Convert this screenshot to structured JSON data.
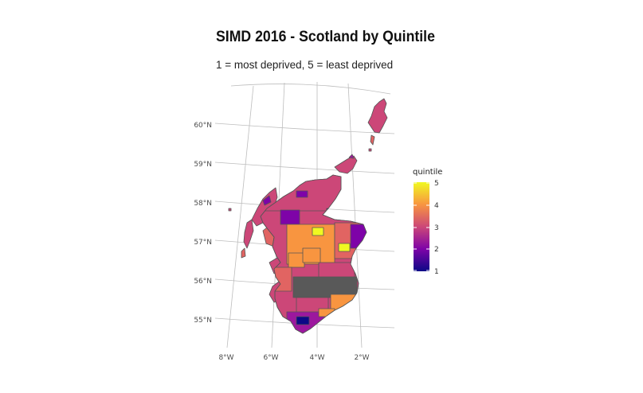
{
  "title": "SIMD 2016 - Scotland by Quintile",
  "subtitle": "1 = most deprived, 5 = least deprived",
  "axes": {
    "latitude_labels": [
      "60°N",
      "59°N",
      "58°N",
      "57°N",
      "56°N",
      "55°N"
    ],
    "longitude_labels": [
      "8°W",
      "6°W",
      "4°W",
      "2°W"
    ]
  },
  "legend": {
    "title": "quintile",
    "ticks": [
      "5",
      "4",
      "3",
      "2",
      "1"
    ],
    "gradient_colors": [
      "#f0f921",
      "#f89540",
      "#cc4778",
      "#7e03a8",
      "#0d0887"
    ]
  },
  "map": {
    "region": "Scotland",
    "fill_variable": "quintile",
    "border_color": "#555555",
    "palette": "plasma"
  }
}
